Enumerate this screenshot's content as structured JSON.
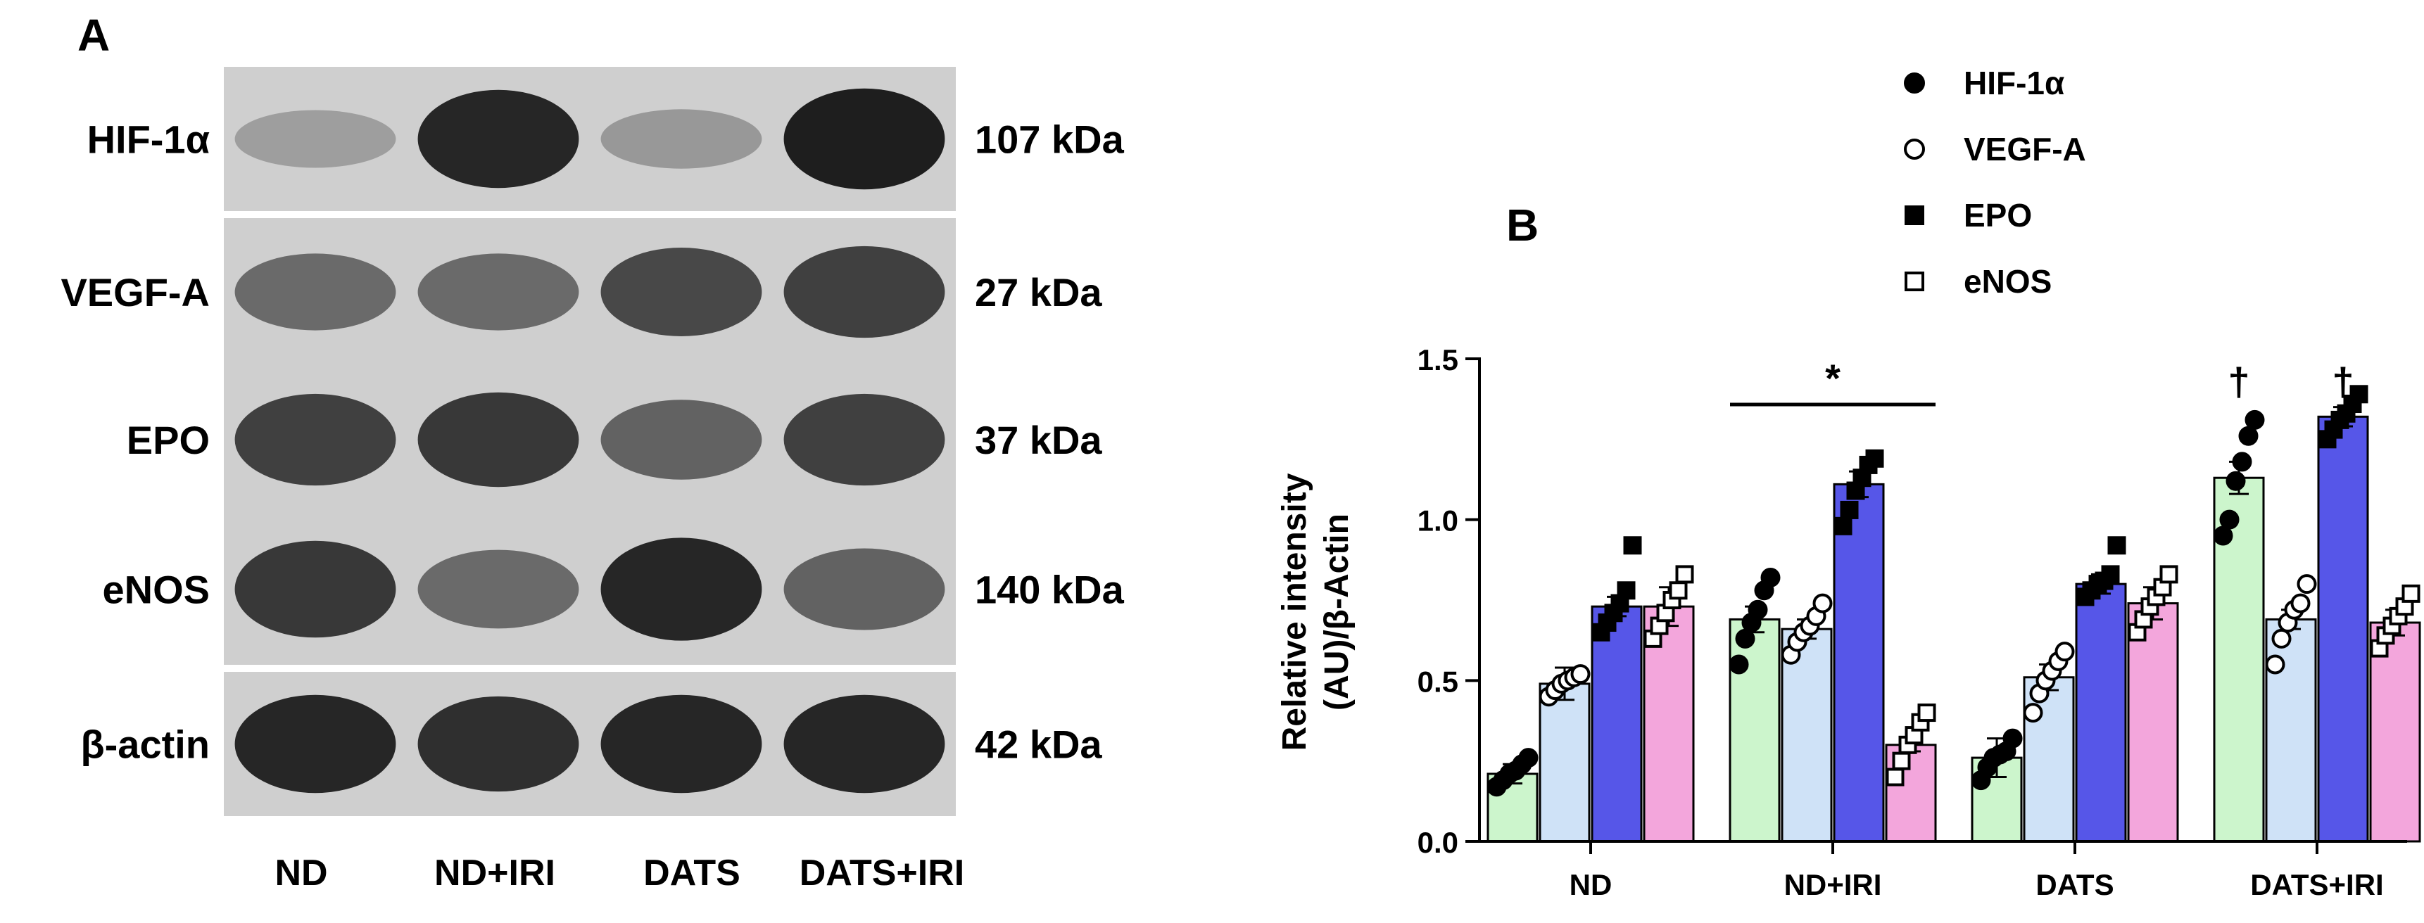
{
  "panel_a": {
    "label": "A",
    "lane_labels": [
      "ND",
      "ND+IRI",
      "DATS",
      "DATS+IRI"
    ],
    "blots": [
      {
        "name": "HIF-1α",
        "size": "107 kDa",
        "band_intensity": [
          0.25,
          0.95,
          0.28,
          1.0
        ]
      },
      {
        "name": "VEGF-A",
        "size": "27 kDa",
        "band_intensity": [
          0.55,
          0.55,
          0.75,
          0.8
        ]
      },
      {
        "name": "EPO",
        "size": "37 kDa",
        "band_intensity": [
          0.8,
          0.85,
          0.6,
          0.8
        ]
      },
      {
        "name": "eNOS",
        "size": "140 kDa",
        "band_intensity": [
          0.85,
          0.55,
          0.95,
          0.6
        ]
      },
      {
        "name": "β-actin",
        "size": "42 kDa",
        "band_intensity": [
          0.95,
          0.9,
          0.95,
          0.95
        ]
      }
    ]
  },
  "chart_data": {
    "type": "bar",
    "panel_label": "B",
    "title": "",
    "categories": [
      "ND",
      "ND+IRI",
      "DATS",
      "DATS+IRI"
    ],
    "ylabel": [
      "Relative intensity",
      "(AU)/β-Actin"
    ],
    "ylim": [
      0,
      1.5
    ],
    "yticks": [
      0.0,
      0.5,
      1.0,
      1.5
    ],
    "ytick_labels": [
      "0.0",
      "0.5",
      "1.0",
      "1.5"
    ],
    "series": [
      {
        "name": "HIF-1α",
        "marker": "circle-filled",
        "color": "#ccf5cc",
        "values": [
          0.21,
          0.69,
          0.26,
          1.13
        ],
        "points": [
          [
            0.17,
            0.19,
            0.21,
            0.22,
            0.24,
            0.26
          ],
          [
            0.55,
            0.63,
            0.68,
            0.72,
            0.78,
            0.82
          ],
          [
            0.19,
            0.23,
            0.26,
            0.27,
            0.28,
            0.32
          ],
          [
            0.95,
            1.0,
            1.12,
            1.18,
            1.26,
            1.31
          ]
        ]
      },
      {
        "name": "VEGF-A",
        "marker": "circle-open",
        "color": "#cfe2f7",
        "values": [
          0.49,
          0.66,
          0.51,
          0.69
        ],
        "points": [
          [
            0.45,
            0.47,
            0.49,
            0.5,
            0.51,
            0.52
          ],
          [
            0.58,
            0.62,
            0.65,
            0.67,
            0.7,
            0.74
          ],
          [
            0.4,
            0.46,
            0.5,
            0.53,
            0.56,
            0.59
          ],
          [
            0.55,
            0.63,
            0.68,
            0.72,
            0.74,
            0.8
          ]
        ]
      },
      {
        "name": "EPO",
        "marker": "square-filled",
        "color": "#5656e8",
        "values": [
          0.73,
          1.11,
          0.8,
          1.32
        ],
        "points": [
          [
            0.65,
            0.68,
            0.71,
            0.74,
            0.78,
            0.92
          ],
          [
            0.98,
            1.03,
            1.09,
            1.13,
            1.17,
            1.19
          ],
          [
            0.76,
            0.78,
            0.8,
            0.81,
            0.83,
            0.92
          ],
          [
            1.25,
            1.28,
            1.31,
            1.33,
            1.36,
            1.39
          ]
        ]
      },
      {
        "name": "eNOS",
        "marker": "square-open",
        "color": "#f3a6dc",
        "values": [
          0.73,
          0.3,
          0.74,
          0.68
        ],
        "points": [
          [
            0.63,
            0.67,
            0.71,
            0.75,
            0.78,
            0.83
          ],
          [
            0.2,
            0.25,
            0.3,
            0.33,
            0.37,
            0.4
          ],
          [
            0.65,
            0.69,
            0.73,
            0.76,
            0.79,
            0.83
          ],
          [
            0.6,
            0.64,
            0.67,
            0.7,
            0.73,
            0.77
          ]
        ]
      }
    ],
    "errors": [
      [
        0.03,
        0.04,
        0.06,
        0.05
      ],
      [
        0.05,
        0.03,
        0.04,
        0.03
      ],
      [
        0.03,
        0.04,
        0.03,
        0.03
      ],
      [
        0.06,
        0.02,
        0.05,
        0.04
      ]
    ],
    "annotations": [
      {
        "text": "*",
        "category": 1,
        "y": 1.35,
        "bracket": true
      },
      {
        "text": "†",
        "category": 3,
        "series": 0,
        "y": 1.43
      },
      {
        "text": "†",
        "category": 3,
        "series": 2,
        "y": 1.43
      }
    ],
    "legend_position": "top-right",
    "grid": false
  }
}
